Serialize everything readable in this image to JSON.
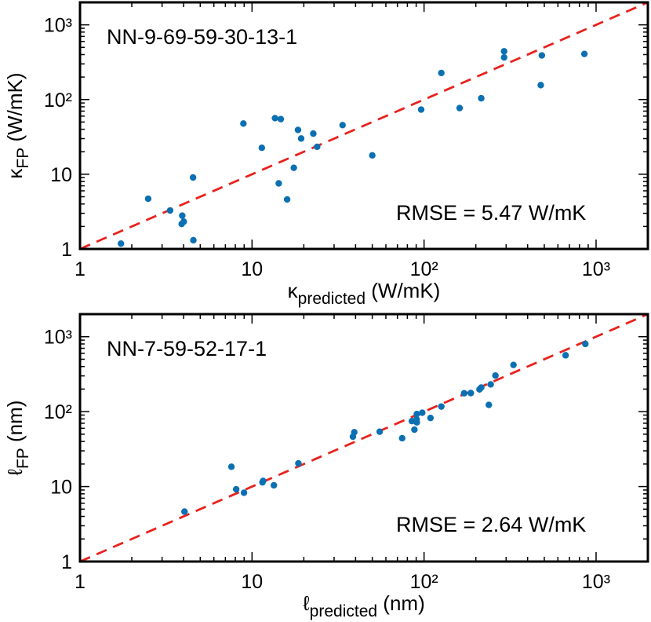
{
  "chart_data": [
    {
      "type": "scatter",
      "xscale": "log",
      "yscale": "log",
      "xlim": [
        1,
        2000
      ],
      "ylim": [
        1,
        2000
      ],
      "xticks": [
        1,
        10,
        100,
        1000
      ],
      "xtick_labels": [
        "1",
        "10",
        "10²",
        "10³"
      ],
      "yticks": [
        1,
        10,
        100,
        1000
      ],
      "ytick_labels": [
        "1",
        "10",
        "10²",
        "10³"
      ],
      "xlabel": {
        "symbol": "κ",
        "subscript": "predicted",
        "unit": " (W/mK)"
      },
      "ylabel": {
        "symbol": "κ",
        "subscript": "FP",
        "unit": "  (W/mK)"
      },
      "model_label": "NN-9-69-59-30-13-1",
      "rmse_label": "RMSE = 5.47 W/mK",
      "reference_line": "y = x",
      "colors": {
        "points": "#0b70b3",
        "reference_line": "#e8221e"
      },
      "points": [
        [
          1.73,
          1.18
        ],
        [
          2.49,
          4.7
        ],
        [
          3.34,
          3.27
        ],
        [
          3.93,
          2.79
        ],
        [
          3.9,
          2.16
        ],
        [
          4.01,
          2.32
        ],
        [
          4.56,
          1.31
        ],
        [
          4.54,
          9.05
        ],
        [
          8.91,
          47.7
        ],
        [
          11.4,
          22.6
        ],
        [
          13.6,
          56.4
        ],
        [
          14.7,
          54.7
        ],
        [
          14.3,
          7.55
        ],
        [
          16.0,
          4.6
        ],
        [
          17.5,
          12.2
        ],
        [
          18.5,
          39.2
        ],
        [
          19.3,
          30.1
        ],
        [
          22.7,
          35
        ],
        [
          23.9,
          23.3
        ],
        [
          33.6,
          45.5
        ],
        [
          50,
          17.9
        ],
        [
          96.2,
          73.3
        ],
        [
          126,
          227
        ],
        [
          161,
          76.9
        ],
        [
          215,
          104
        ],
        [
          292,
          443
        ],
        [
          292,
          366
        ],
        [
          477,
          156
        ],
        [
          484,
          390
        ],
        [
          855,
          408
        ]
      ]
    },
    {
      "type": "scatter",
      "xscale": "log",
      "yscale": "log",
      "xlim": [
        1,
        2000
      ],
      "ylim": [
        1,
        2000
      ],
      "xticks": [
        1,
        10,
        100,
        1000
      ],
      "xtick_labels": [
        "1",
        "10",
        "10²",
        "10³"
      ],
      "yticks": [
        1,
        10,
        100,
        1000
      ],
      "ytick_labels": [
        "1",
        "10",
        "10²",
        "10³"
      ],
      "xlabel": {
        "symbol": "ℓ",
        "subscript": "predicted",
        "unit": " (nm)"
      },
      "ylabel": {
        "symbol": "ℓ",
        "subscript": "FP",
        "unit": "  (nm)"
      },
      "model_label": "NN-7-59-52-17-1",
      "rmse_label": "RMSE = 2.64 W/mK",
      "reference_line": "y = x",
      "colors": {
        "points": "#0b70b3",
        "reference_line": "#e8221e"
      },
      "points": [
        [
          4.05,
          4.63
        ],
        [
          7.59,
          18.4
        ],
        [
          8.09,
          9.2
        ],
        [
          8.98,
          8.28
        ],
        [
          11.5,
          11.4
        ],
        [
          11.6,
          11.9
        ],
        [
          13.4,
          10.4
        ],
        [
          18.6,
          20.4
        ],
        [
          38.6,
          46.4
        ],
        [
          39.3,
          53.2
        ],
        [
          55.2,
          54
        ],
        [
          74.6,
          44.2
        ],
        [
          84.9,
          74.8
        ],
        [
          90.8,
          92.9
        ],
        [
          90.8,
          72
        ],
        [
          90.5,
          79
        ],
        [
          87.9,
          57.5
        ],
        [
          97.6,
          96.7
        ],
        [
          109,
          82.4
        ],
        [
          126,
          117
        ],
        [
          171,
          176
        ],
        [
          187,
          177
        ],
        [
          210,
          198
        ],
        [
          215,
          210
        ],
        [
          244,
          231
        ],
        [
          238,
          123
        ],
        [
          260,
          303
        ],
        [
          331,
          420
        ],
        [
          665,
          565
        ],
        [
          866,
          800
        ]
      ]
    }
  ]
}
